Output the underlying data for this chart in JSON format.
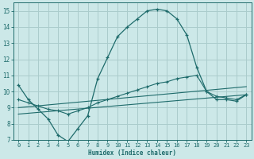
{
  "xlabel": "Humidex (Indice chaleur)",
  "xlim": [
    -0.5,
    23.5
  ],
  "ylim": [
    7,
    15.5
  ],
  "yticks": [
    7,
    8,
    9,
    10,
    11,
    12,
    13,
    14,
    15
  ],
  "xticks": [
    0,
    1,
    2,
    3,
    4,
    5,
    6,
    7,
    8,
    9,
    10,
    11,
    12,
    13,
    14,
    15,
    16,
    17,
    18,
    19,
    20,
    21,
    22,
    23
  ],
  "bg_color": "#cce8e8",
  "grid_color": "#aacccc",
  "line_color": "#1e6b6b",
  "main_x": [
    0,
    1,
    2,
    3,
    4,
    5,
    6,
    7,
    8,
    9,
    10,
    11,
    12,
    13,
    14,
    15,
    16,
    17,
    18,
    19,
    20,
    21,
    22,
    23
  ],
  "main_y": [
    10.4,
    9.5,
    8.9,
    8.3,
    7.3,
    6.9,
    7.7,
    8.5,
    10.8,
    12.1,
    13.4,
    14.0,
    14.5,
    15.0,
    15.1,
    15.0,
    14.5,
    13.5,
    11.5,
    10.0,
    9.5,
    9.5,
    9.4,
    9.8
  ],
  "line2_x": [
    0,
    1,
    2,
    3,
    4,
    5,
    6,
    7,
    8,
    9,
    10,
    11,
    12,
    13,
    14,
    15,
    16,
    17,
    18,
    19,
    20,
    21,
    22,
    23
  ],
  "line2_y": [
    9.5,
    9.3,
    9.1,
    8.9,
    8.8,
    8.6,
    8.8,
    9.0,
    9.3,
    9.5,
    9.7,
    9.9,
    10.1,
    10.3,
    10.5,
    10.6,
    10.8,
    10.9,
    11.0,
    10.0,
    9.7,
    9.6,
    9.5,
    9.8
  ],
  "line3_x": [
    0,
    23
  ],
  "line3_y": [
    9.0,
    10.3
  ],
  "line4_x": [
    0,
    23
  ],
  "line4_y": [
    8.6,
    9.8
  ]
}
